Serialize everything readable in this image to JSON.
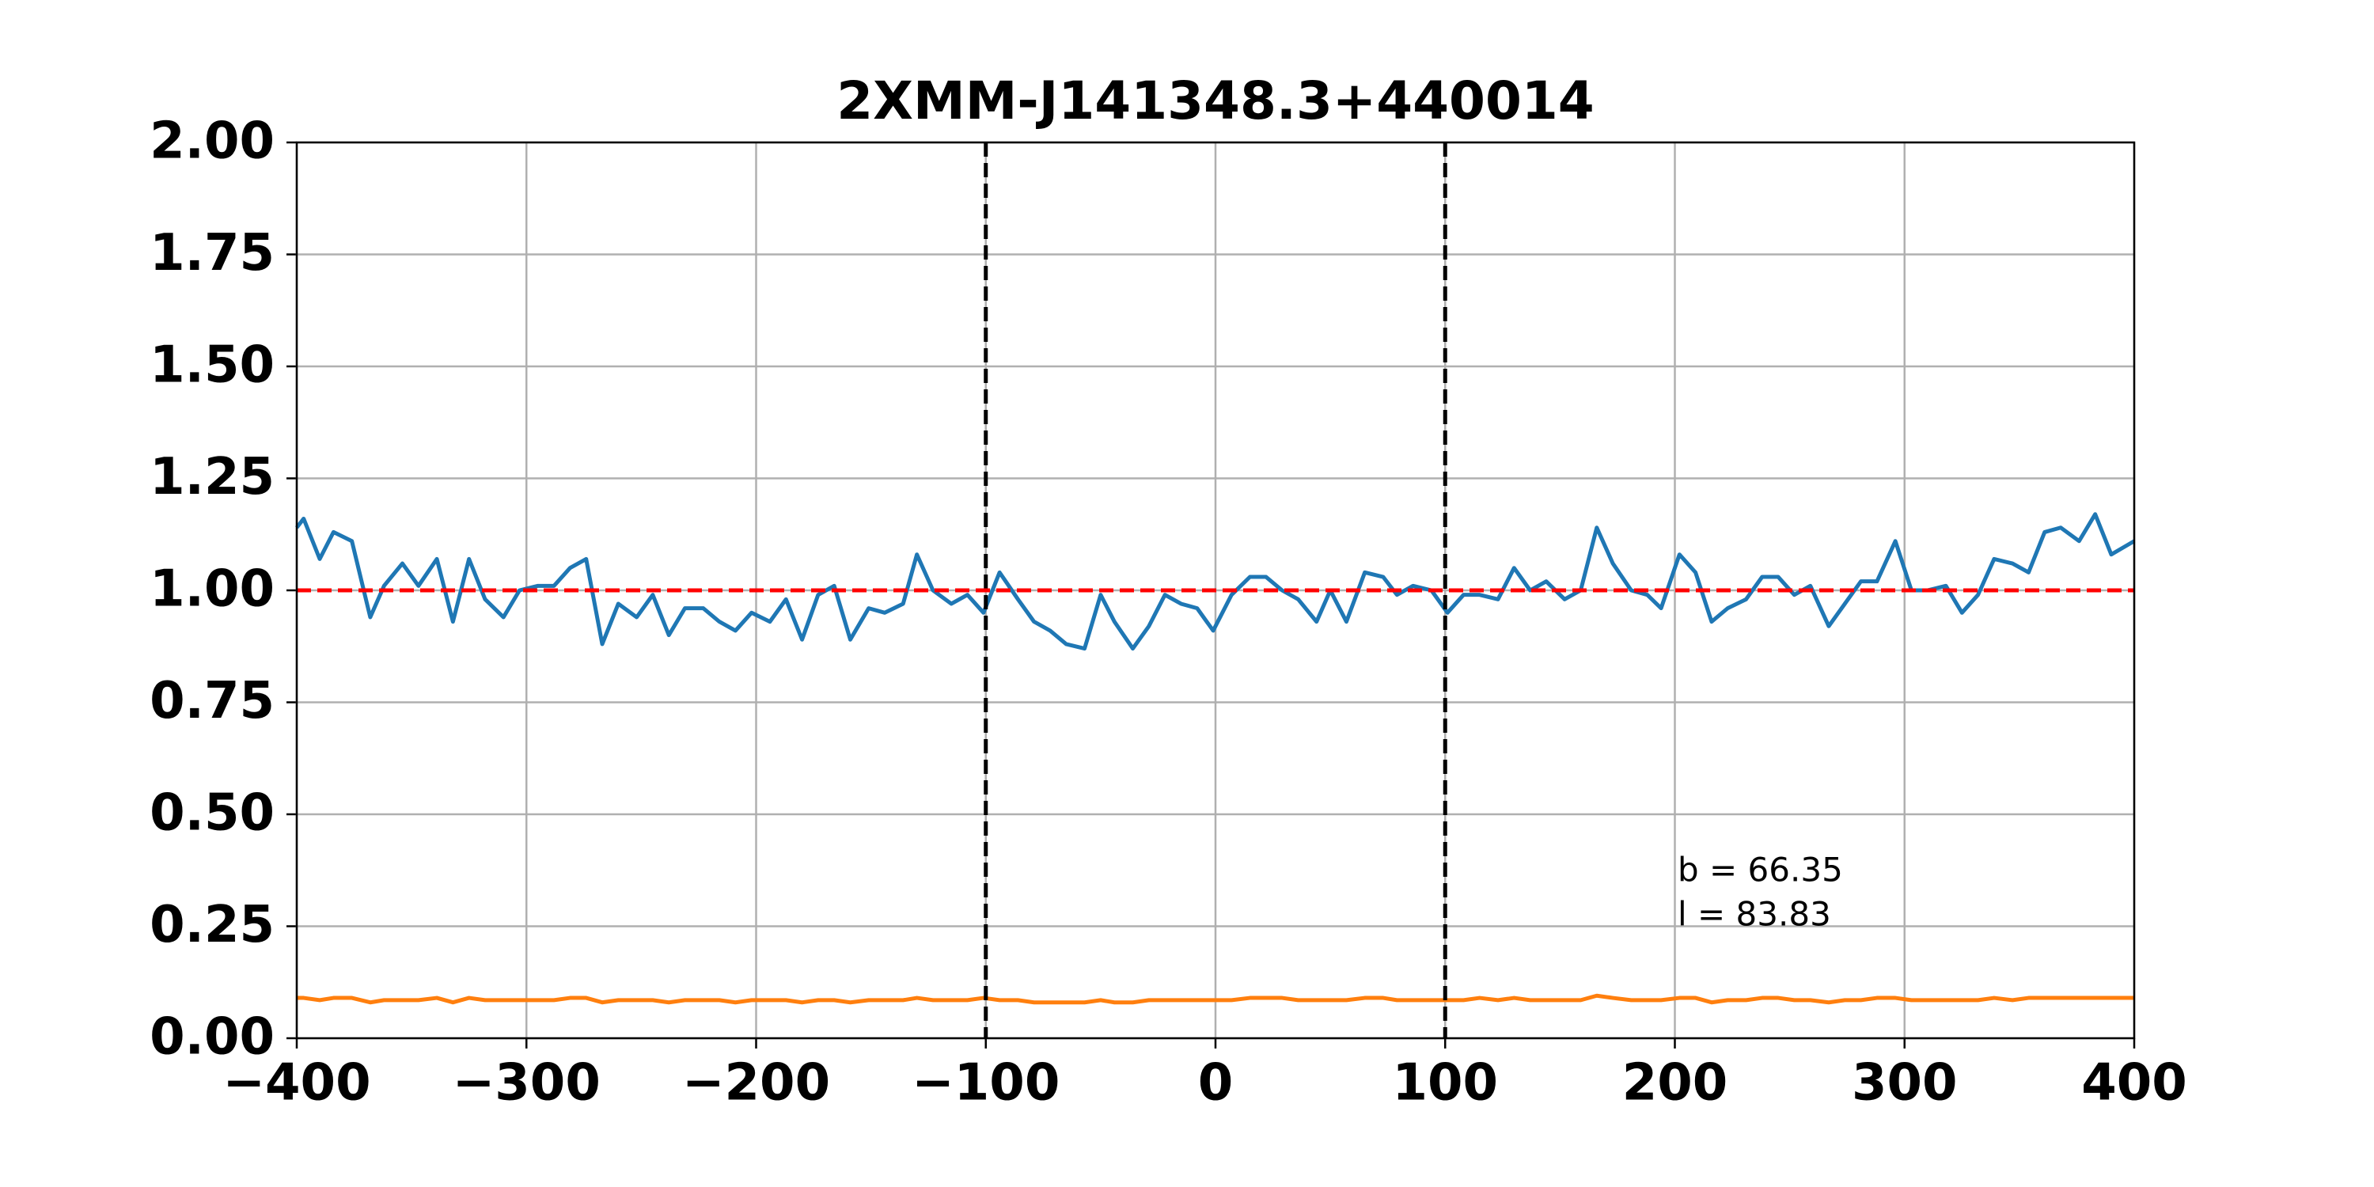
{
  "chart_data": {
    "type": "line",
    "title": "2XMM-J141348.3+440014",
    "x": [
      -400,
      -397,
      -390,
      -384,
      -376,
      -368,
      -362,
      -354,
      -347,
      -339,
      -332,
      -325,
      -318,
      -310,
      -303,
      -295,
      -288,
      -281,
      -274,
      -267,
      -260,
      -252,
      -245,
      -238,
      -231,
      -223,
      -216,
      -209,
      -202,
      -194,
      -187,
      -180,
      -173,
      -166,
      -159,
      -151,
      -144,
      -136,
      -130,
      -123,
      -115,
      -108,
      -101,
      -94,
      -86,
      -79,
      -72,
      -65,
      -57,
      -50,
      -44,
      -36,
      -29,
      -22,
      -15,
      -8,
      -1,
      7,
      15,
      22,
      29,
      36,
      44,
      50,
      57,
      65,
      73,
      79,
      86,
      94,
      101,
      108,
      115,
      123,
      130,
      137,
      144,
      152,
      159,
      166,
      173,
      181,
      188,
      194,
      202,
      209,
      216,
      223,
      231,
      238,
      245,
      252,
      259,
      267,
      274,
      281,
      288,
      296,
      303,
      310,
      318,
      325,
      332,
      339,
      347,
      354,
      361,
      368,
      376,
      383,
      390,
      400
    ],
    "series": [
      {
        "color": "#1f77b4",
        "values": [
          1.14,
          1.16,
          1.07,
          1.13,
          1.11,
          0.94,
          1.01,
          1.06,
          1.01,
          1.07,
          0.93,
          1.07,
          0.98,
          0.94,
          1.0,
          1.01,
          1.01,
          1.05,
          1.07,
          0.88,
          0.97,
          0.94,
          0.99,
          0.9,
          0.96,
          0.96,
          0.93,
          0.91,
          0.95,
          0.93,
          0.98,
          0.89,
          0.99,
          1.01,
          0.89,
          0.96,
          0.95,
          0.97,
          1.08,
          1.0,
          0.97,
          0.99,
          0.95,
          1.04,
          0.98,
          0.93,
          0.91,
          0.88,
          0.87,
          0.99,
          0.93,
          0.87,
          0.92,
          0.99,
          0.97,
          0.96,
          0.91,
          0.99,
          1.03,
          1.03,
          1.0,
          0.98,
          0.93,
          1.0,
          0.93,
          1.04,
          1.03,
          0.99,
          1.01,
          1.0,
          0.95,
          0.99,
          0.99,
          0.98,
          1.05,
          1.0,
          1.02,
          0.98,
          1.0,
          1.14,
          1.06,
          1.0,
          0.99,
          0.96,
          1.08,
          1.04,
          0.93,
          0.96,
          0.98,
          1.03,
          1.03,
          0.99,
          1.01,
          0.92,
          0.97,
          1.02,
          1.02,
          1.11,
          1.0,
          1.0,
          1.01,
          0.95,
          0.99,
          1.07,
          1.06,
          1.04,
          1.13,
          1.14,
          1.11,
          1.17,
          1.08,
          1.11
        ]
      },
      {
        "color": "#ff7f0e",
        "values": [
          0.09,
          0.09,
          0.085,
          0.09,
          0.09,
          0.08,
          0.085,
          0.085,
          0.085,
          0.09,
          0.08,
          0.09,
          0.085,
          0.085,
          0.085,
          0.085,
          0.085,
          0.09,
          0.09,
          0.08,
          0.085,
          0.085,
          0.085,
          0.08,
          0.085,
          0.085,
          0.085,
          0.08,
          0.085,
          0.085,
          0.085,
          0.08,
          0.085,
          0.085,
          0.08,
          0.085,
          0.085,
          0.085,
          0.09,
          0.085,
          0.085,
          0.085,
          0.09,
          0.085,
          0.085,
          0.08,
          0.08,
          0.08,
          0.08,
          0.085,
          0.08,
          0.08,
          0.085,
          0.085,
          0.085,
          0.085,
          0.085,
          0.085,
          0.09,
          0.09,
          0.09,
          0.085,
          0.085,
          0.085,
          0.085,
          0.09,
          0.09,
          0.085,
          0.085,
          0.085,
          0.085,
          0.085,
          0.09,
          0.085,
          0.09,
          0.085,
          0.085,
          0.085,
          0.085,
          0.095,
          0.09,
          0.085,
          0.085,
          0.085,
          0.09,
          0.09,
          0.08,
          0.085,
          0.085,
          0.09,
          0.09,
          0.085,
          0.085,
          0.08,
          0.085,
          0.085,
          0.09,
          0.09,
          0.085,
          0.085,
          0.085,
          0.085,
          0.085,
          0.09,
          0.085,
          0.09,
          0.09,
          0.09,
          0.09,
          0.09,
          0.09,
          0.09
        ]
      }
    ],
    "hline": {
      "value": 1,
      "color": "#ff0000"
    },
    "vlines": [
      -100,
      100
    ],
    "annotations": [
      "b = 66.35",
      "l = 83.83"
    ],
    "xlim": [
      -400,
      400
    ],
    "ylim": [
      0,
      2
    ],
    "xticks": [
      {
        "value": -400,
        "label": "−400"
      },
      {
        "value": -300,
        "label": "−300"
      },
      {
        "value": -200,
        "label": "−200"
      },
      {
        "value": -100,
        "label": "−100"
      },
      0,
      100,
      200,
      300,
      400
    ],
    "yticks": [
      {
        "value": 0,
        "label": "0.00"
      },
      {
        "value": 0.25,
        "label": "0.25"
      },
      {
        "value": 0.5,
        "label": "0.50"
      },
      {
        "value": 0.75,
        "label": "0.75"
      },
      {
        "value": 1,
        "label": "1.00"
      },
      {
        "value": 1.25,
        "label": "1.25"
      },
      {
        "value": 1.5,
        "label": "1.50"
      },
      {
        "value": 1.75,
        "label": "1.75"
      },
      {
        "value": 2,
        "label": "2.00"
      }
    ],
    "grid": true
  }
}
